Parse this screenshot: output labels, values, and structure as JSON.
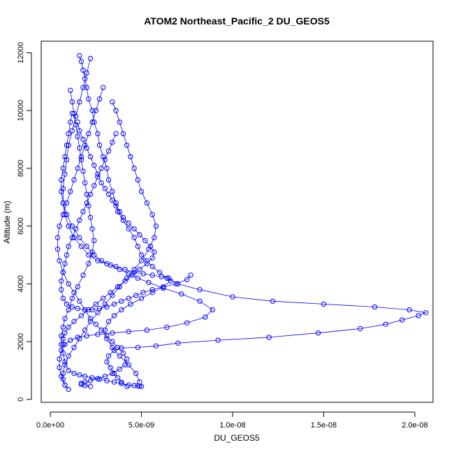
{
  "chart_data": {
    "type": "scatter",
    "title": "ATOM2 Northeast_Pacific_2 DU_GEOS5",
    "xlabel": "DU_GEOS5",
    "ylabel": "Altitude (m)",
    "xlim": [
      -5e-10,
      2.1e-08
    ],
    "ylim": [
      -100,
      12400
    ],
    "x_ticks": [
      0,
      5e-09,
      1e-08,
      1.5e-08,
      2e-08
    ],
    "x_tick_labels": [
      "0.0e+00",
      "5.0e-09",
      "1.0e-08",
      "1.5e-08",
      "2.0e-08"
    ],
    "y_ticks": [
      0,
      2000,
      4000,
      6000,
      8000,
      10000,
      12000
    ],
    "y_tick_labels": [
      "0",
      "2000",
      "4000",
      "6000",
      "8000",
      "10000",
      "12000"
    ],
    "marker": "open-circle",
    "connected": true,
    "color": "#0000ff",
    "series": [
      {
        "x": [
          1.6e-09,
          1.7e-09,
          1.8e-09,
          1.9e-09,
          2e-09,
          2.1e-09,
          2.3e-09,
          2.4e-09,
          2.6e-09,
          2.7e-09,
          2.9e-09,
          3.1e-09,
          3.2e-09,
          3.4e-09,
          3.6e-09,
          3.7e-09,
          4e-09,
          4.3e-09,
          4.6e-09,
          4.8e-09,
          5e-09,
          5.3e-09,
          5.6e-09,
          6e-09,
          6.4e-09,
          7e-09,
          8.2e-09,
          1e-08,
          1.22e-08,
          1.5e-08,
          1.78e-08,
          1.97e-08,
          2.06e-08,
          2.02e-08,
          1.93e-08,
          1.84e-08,
          1.7e-08,
          1.47e-08,
          1.2e-08,
          9.2e-09,
          7e-09,
          5.8e-09,
          4.8e-09,
          3.9e-09,
          3.5e-09,
          3.2e-09,
          3.1e-09,
          3.3e-09,
          3.5e-09,
          3.7e-09,
          3.9e-09,
          4.2e-09
        ],
        "y": [
          11900,
          11700,
          11400,
          11100,
          10800,
          10400,
          10000,
          9600,
          9200,
          8800,
          8400,
          8000,
          7600,
          7200,
          6800,
          6500,
          6200,
          5900,
          5600,
          5300,
          5000,
          4800,
          4600,
          4400,
          4200,
          4000,
          3800,
          3550,
          3400,
          3300,
          3200,
          3100,
          3000,
          2900,
          2750,
          2600,
          2450,
          2300,
          2150,
          2050,
          1950,
          1850,
          1800,
          1780,
          1700,
          1500,
          1300,
          1100,
          900,
          750,
          600,
          450
        ]
      },
      {
        "x": [
          1.2e-09,
          1.1e-09,
          1e-09,
          9e-10,
          8e-10,
          7e-10,
          6e-10,
          6e-10,
          7e-10,
          9e-10,
          1.2e-09,
          1.6e-09,
          2e-09,
          2.4e-09,
          2.8e-09,
          3.3e-09,
          3.8e-09,
          4.3e-09,
          4.8e-09,
          5.4e-09,
          6.2e-09,
          7.2e-09,
          8.2e-09,
          8.9e-09,
          8.5e-09,
          7.5e-09,
          6.4e-09,
          5.3e-09,
          4.3e-09,
          3.4e-09,
          2.6e-09,
          2e-09,
          1.5e-09,
          1.1e-09,
          8e-10,
          6e-10,
          5e-10,
          5e-10,
          6e-10,
          8e-10
        ],
        "y": [
          9900,
          9600,
          9200,
          8800,
          8400,
          8000,
          7600,
          7200,
          6800,
          6400,
          6000,
          5600,
          5300,
          5000,
          4800,
          4650,
          4500,
          4350,
          4200,
          4050,
          3850,
          3650,
          3400,
          3100,
          2850,
          2650,
          2500,
          2400,
          2350,
          2300,
          2250,
          2200,
          2150,
          2050,
          1900,
          1700,
          1400,
          1100,
          800,
          500
        ]
      },
      {
        "x": [
          3.4e-09,
          3.6e-09,
          3.8e-09,
          4e-09,
          4.2e-09,
          4.4e-09,
          4.6e-09,
          4.8e-09,
          5e-09,
          5.3e-09,
          5.6e-09,
          5.8e-09,
          5.7e-09,
          5.4e-09,
          5e-09,
          4.6e-09,
          4.2e-09,
          3.8e-09,
          3.4e-09,
          3e-09,
          2.6e-09,
          2.2e-09,
          1.9e-09,
          1.6e-09,
          1.3e-09,
          1e-09,
          8e-10,
          7e-10,
          7e-10,
          8e-10,
          1e-09
        ],
        "y": [
          10300,
          10000,
          9600,
          9200,
          8800,
          8400,
          8000,
          7600,
          7200,
          6800,
          6400,
          6000,
          5600,
          5200,
          4800,
          4500,
          4200,
          3900,
          3600,
          3300,
          3000,
          2700,
          2400,
          2100,
          1800,
          1500,
          1200,
          900,
          700,
          500,
          350
        ]
      },
      {
        "x": [
          2.2e-09,
          2e-09,
          1.8e-09,
          1.6e-09,
          1.4e-09,
          1.2e-09,
          1e-09,
          9e-10,
          8e-10,
          7e-10,
          7e-10,
          8e-10,
          1e-09,
          1.3e-09,
          1.7e-09,
          2.1e-09,
          2.6e-09,
          3.1e-09,
          3.6e-09,
          4.1e-09,
          4.6e-09,
          5.1e-09,
          5.6e-09,
          6.1e-09,
          6.5e-09,
          6.6e-09,
          6.2e-09,
          5.6e-09,
          5e-09,
          4.4e-09,
          3.9e-09,
          3.5e-09,
          3.2e-09,
          3e-09,
          3.1e-09,
          3.4e-09,
          3.8e-09,
          4.3e-09,
          4.7e-09,
          4.9e-09
        ],
        "y": [
          11800,
          11300,
          10800,
          10300,
          9800,
          9300,
          8800,
          8300,
          7800,
          7300,
          6800,
          6400,
          6000,
          5600,
          5300,
          5000,
          4800,
          4700,
          4600,
          4500,
          4400,
          4350,
          4300,
          4250,
          4200,
          4100,
          3900,
          3700,
          3500,
          3300,
          3100,
          2900,
          2700,
          2400,
          2100,
          1800,
          1500,
          1200,
          900,
          600
        ]
      },
      {
        "x": [
          2.9e-09,
          2.7e-09,
          2.5e-09,
          2.3e-09,
          2.1e-09,
          1.9e-09,
          1.7e-09,
          1.5e-09,
          1.3e-09,
          1.1e-09,
          9e-10,
          7e-10,
          5e-10,
          4e-10,
          4e-10,
          5e-10,
          7e-10,
          1e-09,
          1.3e-09,
          1.6e-09,
          1.9e-09,
          2.2e-09,
          2.5e-09,
          2.8e-09,
          3.1e-09,
          3.4e-09,
          3.7e-09,
          4e-09,
          4.2e-09,
          4.1e-09,
          3.8e-09,
          3.4e-09,
          3e-09,
          2.6e-09,
          2.2e-09,
          1.9e-09,
          1.7e-09,
          1.7e-09,
          1.9e-09,
          2.2e-09
        ],
        "y": [
          10800,
          10400,
          10000,
          9600,
          9200,
          8800,
          8400,
          8000,
          7600,
          7200,
          6800,
          6400,
          6000,
          5600,
          5200,
          4800,
          4400,
          4000,
          3700,
          3400,
          3100,
          2800,
          2600,
          2400,
          2200,
          2000,
          1800,
          1600,
          1400,
          1200,
          1050,
          900,
          800,
          720,
          650,
          600,
          560,
          520,
          480,
          450
        ]
      },
      {
        "x": [
          1.1e-09,
          1.2e-09,
          1.3e-09,
          1.4e-09,
          1.5e-09,
          1.6e-09,
          1.7e-09,
          1.8e-09,
          1.9e-09,
          2e-09,
          2.1e-09,
          2.2e-09,
          2.3e-09,
          2.4e-09,
          2.3e-09,
          2.1e-09,
          1.8e-09,
          1.5e-09,
          1.2e-09,
          1e-09,
          8e-10,
          7e-10,
          6e-10,
          6e-10,
          7e-10,
          8e-10,
          1e-09,
          1.3e-09,
          1.6e-09,
          1.9e-09,
          2.3e-09,
          2.7e-09,
          3.1e-09,
          3.5e-09,
          3.9e-09,
          4.3e-09,
          4.6e-09,
          4.8e-09,
          4.9e-09,
          5e-09
        ],
        "y": [
          10700,
          10300,
          9900,
          9500,
          9100,
          8700,
          8300,
          7900,
          7500,
          7100,
          6700,
          6300,
          5900,
          5500,
          5100,
          4700,
          4300,
          3900,
          3500,
          3100,
          2800,
          2500,
          2200,
          1900,
          1600,
          1300,
          1000,
          900,
          850,
          800,
          750,
          700,
          650,
          600,
          550,
          500,
          480,
          470,
          460,
          450
        ]
      },
      {
        "x": [
          1.5e-09,
          1.6e-09,
          1.8e-09,
          2e-09,
          2.2e-09,
          2.4e-09,
          2.6e-09,
          2.8e-09,
          3e-09,
          3.2e-09,
          3.4e-09,
          3.6e-09,
          3.8e-09,
          4e-09,
          4.3e-09,
          4.6e-09,
          4.9e-09,
          5.2e-09,
          5.5e-09,
          5.7e-09,
          5.6e-09,
          5.3e-09,
          4.9e-09,
          4.5e-09,
          4.1e-09,
          3.7e-09,
          3.3e-09,
          2.9e-09,
          2.5e-09,
          2.1e-09,
          1.7e-09,
          1.3e-09,
          1e-09,
          8e-10,
          7e-10,
          7e-10
        ],
        "y": [
          9600,
          9300,
          9000,
          8700,
          8400,
          8100,
          7800,
          7500,
          7300,
          7100,
          6900,
          6700,
          6500,
          6300,
          6100,
          5900,
          5700,
          5500,
          5300,
          5100,
          4900,
          4700,
          4500,
          4300,
          4100,
          3900,
          3700,
          3500,
          3300,
          3100,
          2900,
          2700,
          2500,
          2300,
          2100,
          1900
        ]
      },
      {
        "x": [
          3.6e-09,
          3.4e-09,
          3.2e-09,
          3e-09,
          2.8e-09,
          2.6e-09,
          2.4e-09,
          2.2e-09,
          2e-09,
          1.8e-09,
          1.6e-09,
          1.4e-09,
          1.2e-09,
          1e-09,
          9e-10,
          8e-10,
          7e-10,
          6e-10,
          6e-10,
          7e-10,
          9e-10,
          1.2e-09,
          1.5e-09,
          1.9e-09,
          2.3e-09,
          2.7e-09,
          3.1e-09,
          3.5e-09,
          3.9e-09,
          4.3e-09,
          4.7e-09,
          5.1e-09,
          5.6e-09,
          6.2e-09,
          6.9e-09,
          7.5e-09,
          7.7e-09
        ],
        "y": [
          9200,
          8900,
          8600,
          8300,
          8000,
          7700,
          7400,
          7100,
          6800,
          6500,
          6200,
          5900,
          5600,
          5300,
          5000,
          4700,
          4400,
          4100,
          3800,
          3500,
          3300,
          3200,
          3150,
          3100,
          3100,
          3150,
          3200,
          3300,
          3400,
          3500,
          3600,
          3700,
          3800,
          3900,
          4000,
          4150,
          4300
        ]
      }
    ]
  }
}
